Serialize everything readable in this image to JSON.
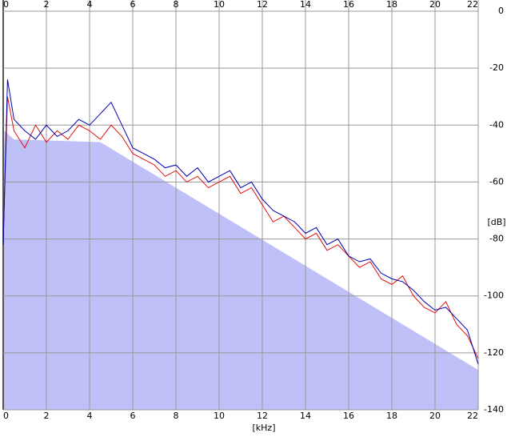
{
  "chart_data": {
    "type": "line",
    "xlabel": "[kHz]",
    "ylabel": "[dB]",
    "xlim": [
      0,
      22
    ],
    "ylim": [
      -140,
      0
    ],
    "xticks": [
      0,
      2,
      4,
      6,
      8,
      10,
      12,
      14,
      16,
      18,
      20,
      22
    ],
    "yticks": [
      0,
      -20,
      -40,
      -60,
      -80,
      -100,
      -120,
      -140
    ],
    "grid": true,
    "series": [
      {
        "style": "area",
        "color": "#c0c0f8",
        "x": [
          0,
          0.05,
          0.5,
          4.5,
          22
        ],
        "values": [
          -82,
          -42,
          -45,
          -46,
          -126
        ]
      },
      {
        "color": "#e01010",
        "x": [
          0,
          0.2,
          0.5,
          1,
          1.5,
          2,
          2.5,
          3,
          3.5,
          4,
          4.5,
          5,
          5.5,
          6,
          6.5,
          7,
          7.5,
          8,
          8.5,
          9,
          9.5,
          10,
          10.5,
          11,
          11.5,
          12,
          12.5,
          13,
          13.5,
          14,
          14.5,
          15,
          15.5,
          16,
          16.5,
          17,
          17.5,
          18,
          18.5,
          19,
          19.5,
          20,
          20.5,
          21,
          21.5,
          22
        ],
        "values": [
          -80,
          -30,
          -42,
          -48,
          -40,
          -46,
          -42,
          -45,
          -40,
          -42,
          -45,
          -40,
          -44,
          -50,
          -52,
          -54,
          -58,
          -56,
          -60,
          -58,
          -62,
          -60,
          -58,
          -64,
          -62,
          -68,
          -74,
          -72,
          -76,
          -80,
          -78,
          -84,
          -82,
          -86,
          -90,
          -88,
          -94,
          -96,
          -93,
          -100,
          -104,
          -106,
          -102,
          -110,
          -114,
          -122
        ]
      },
      {
        "color": "#0000b0",
        "x": [
          0,
          0.2,
          0.5,
          1,
          1.5,
          2,
          2.5,
          3,
          3.5,
          4,
          4.5,
          5,
          5.5,
          6,
          6.5,
          7,
          7.5,
          8,
          8.5,
          9,
          9.5,
          10,
          10.5,
          11,
          11.5,
          12,
          12.5,
          13,
          13.5,
          14,
          14.5,
          15,
          15.5,
          16,
          16.5,
          17,
          17.5,
          18,
          18.5,
          19,
          19.5,
          20,
          20.5,
          21,
          21.5,
          22
        ],
        "values": [
          -82,
          -24,
          -38,
          -42,
          -45,
          -40,
          -44,
          -42,
          -38,
          -40,
          -36,
          -32,
          -40,
          -48,
          -50,
          -52,
          -55,
          -54,
          -58,
          -55,
          -60,
          -58,
          -56,
          -62,
          -60,
          -66,
          -70,
          -72,
          -74,
          -78,
          -76,
          -82,
          -80,
          -86,
          -88,
          -87,
          -92,
          -94,
          -95,
          -98,
          -102,
          -105,
          -104,
          -108,
          -112,
          -124
        ]
      }
    ]
  }
}
